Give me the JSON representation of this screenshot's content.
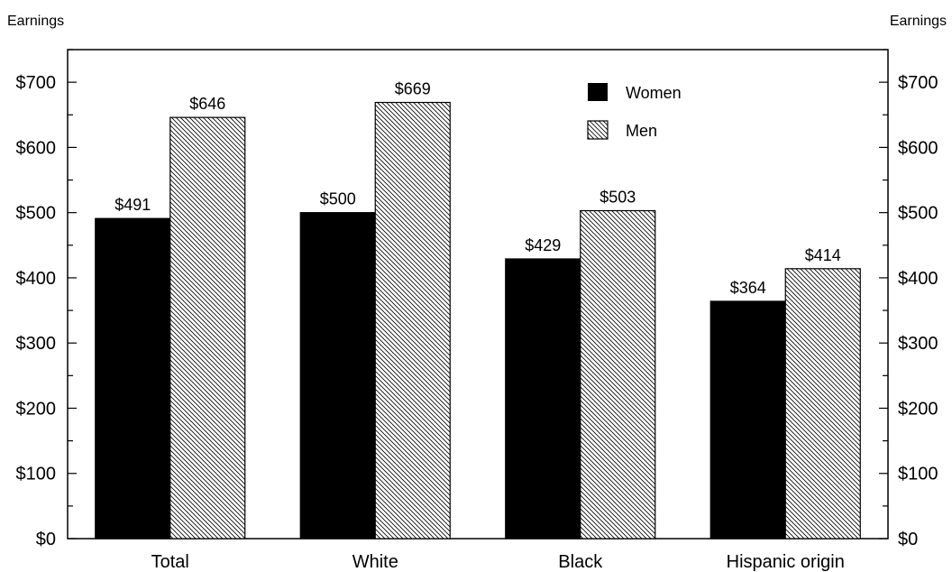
{
  "chart_data": {
    "type": "bar",
    "categories": [
      "Total",
      "White",
      "Black",
      "Hispanic origin"
    ],
    "series": [
      {
        "name": "Women",
        "values": [
          491,
          500,
          429,
          364
        ],
        "labels": [
          "$491",
          "$500",
          "$429",
          "$364"
        ],
        "color": "#000000",
        "fill": "solid"
      },
      {
        "name": "Men",
        "values": [
          646,
          669,
          503,
          414
        ],
        "labels": [
          "$646",
          "$669",
          "$503",
          "$414"
        ],
        "color": "#000000",
        "fill": "diagonal-hatch"
      }
    ],
    "ylabel_left": "Earnings",
    "ylabel_right": "Earnings",
    "ylim": [
      0,
      750
    ],
    "yticks": [
      0,
      100,
      200,
      300,
      400,
      500,
      600,
      700
    ],
    "ytick_labels": [
      "$0",
      "$100",
      "$200",
      "$300",
      "$400",
      "$500",
      "$600",
      "$700"
    ],
    "minor_tick_step": 50,
    "grid": false,
    "legend_position": "top-right"
  }
}
